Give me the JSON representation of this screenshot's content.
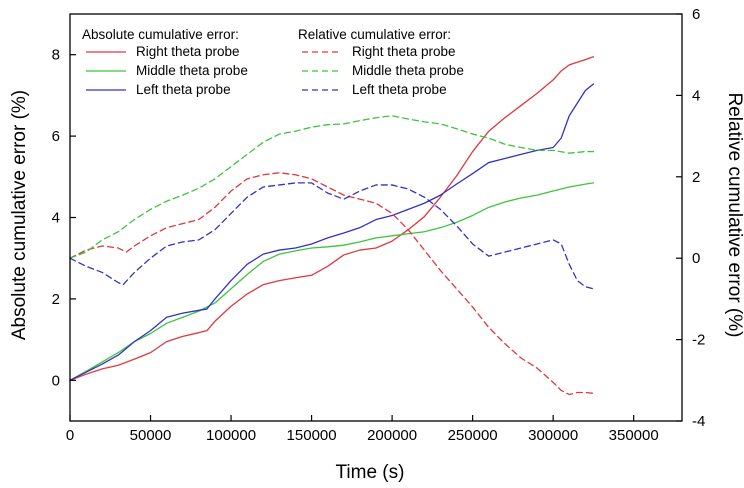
{
  "chart_data": {
    "type": "line",
    "xlabel": "Time (s)",
    "ylabel_left": "Absolute cumulative error (%)",
    "ylabel_right": "Relative cumulative error (%)",
    "xlim": [
      0,
      380000
    ],
    "ylim_left": [
      -1,
      9
    ],
    "ylim_right": [
      -4,
      6
    ],
    "x_ticks": [
      0,
      50000,
      100000,
      150000,
      200000,
      250000,
      300000,
      350000
    ],
    "y_ticks_left": [
      0,
      2,
      4,
      6,
      8
    ],
    "y_ticks_right": [
      -4,
      -2,
      0,
      2,
      4,
      6
    ],
    "legend": {
      "absolute_title": "Absolute cumulative error:",
      "relative_title": "Relative cumulative error:"
    },
    "series": [
      {
        "name": "Right theta probe",
        "group": "absolute",
        "axis": "left",
        "color": "#e0383c",
        "dash": "solid",
        "x": [
          0,
          10000,
          20000,
          30000,
          40000,
          50000,
          60000,
          70000,
          80000,
          85000,
          90000,
          100000,
          110000,
          120000,
          130000,
          140000,
          150000,
          160000,
          170000,
          180000,
          190000,
          200000,
          210000,
          220000,
          230000,
          240000,
          250000,
          260000,
          270000,
          280000,
          290000,
          300000,
          305000,
          310000,
          320000,
          325000
        ],
        "y": [
          0,
          0.15,
          0.28,
          0.37,
          0.52,
          0.68,
          0.95,
          1.08,
          1.17,
          1.22,
          1.45,
          1.82,
          2.12,
          2.35,
          2.45,
          2.52,
          2.58,
          2.8,
          3.08,
          3.2,
          3.25,
          3.42,
          3.7,
          4.02,
          4.5,
          5.02,
          5.62,
          6.12,
          6.45,
          6.75,
          7.05,
          7.38,
          7.6,
          7.75,
          7.88,
          7.95
        ]
      },
      {
        "name": "Middle theta probe",
        "group": "absolute",
        "axis": "left",
        "color": "#3ec43e",
        "dash": "solid",
        "x": [
          0,
          10000,
          20000,
          30000,
          40000,
          50000,
          60000,
          70000,
          80000,
          90000,
          100000,
          110000,
          120000,
          130000,
          140000,
          150000,
          160000,
          170000,
          180000,
          190000,
          200000,
          210000,
          220000,
          230000,
          240000,
          250000,
          260000,
          270000,
          280000,
          290000,
          300000,
          310000,
          320000,
          325000
        ],
        "y": [
          0,
          0.22,
          0.45,
          0.68,
          0.95,
          1.15,
          1.4,
          1.55,
          1.7,
          1.9,
          2.25,
          2.6,
          2.92,
          3.1,
          3.18,
          3.25,
          3.28,
          3.32,
          3.4,
          3.5,
          3.55,
          3.6,
          3.65,
          3.75,
          3.88,
          4.05,
          4.25,
          4.38,
          4.48,
          4.55,
          4.65,
          4.75,
          4.82,
          4.85
        ]
      },
      {
        "name": "Left theta probe",
        "group": "absolute",
        "axis": "left",
        "color": "#3232c8",
        "dash": "solid",
        "x": [
          0,
          10000,
          20000,
          30000,
          40000,
          50000,
          60000,
          70000,
          80000,
          85000,
          90000,
          100000,
          110000,
          120000,
          130000,
          140000,
          150000,
          160000,
          170000,
          180000,
          190000,
          200000,
          210000,
          220000,
          230000,
          240000,
          250000,
          260000,
          270000,
          280000,
          290000,
          300000,
          305000,
          310000,
          320000,
          325000
        ],
        "y": [
          0,
          0.2,
          0.4,
          0.62,
          0.95,
          1.22,
          1.55,
          1.65,
          1.72,
          1.75,
          2.0,
          2.45,
          2.85,
          3.1,
          3.2,
          3.25,
          3.35,
          3.5,
          3.62,
          3.75,
          3.95,
          4.05,
          4.2,
          4.35,
          4.55,
          4.82,
          5.08,
          5.35,
          5.45,
          5.55,
          5.65,
          5.72,
          5.95,
          6.5,
          7.12,
          7.28
        ]
      },
      {
        "name": "Right theta probe",
        "group": "relative",
        "axis": "right",
        "color": "#e0383c",
        "dash": "dashed",
        "x": [
          0,
          10000,
          20000,
          30000,
          35000,
          40000,
          50000,
          60000,
          70000,
          80000,
          90000,
          100000,
          110000,
          120000,
          130000,
          140000,
          150000,
          160000,
          170000,
          180000,
          190000,
          200000,
          210000,
          220000,
          230000,
          240000,
          250000,
          260000,
          270000,
          280000,
          290000,
          300000,
          305000,
          310000,
          315000,
          320000,
          325000
        ],
        "y": [
          0,
          0.2,
          0.3,
          0.25,
          0.15,
          0.3,
          0.55,
          0.75,
          0.85,
          0.95,
          1.25,
          1.65,
          1.95,
          2.05,
          2.1,
          2.05,
          1.95,
          1.75,
          1.55,
          1.45,
          1.35,
          1.1,
          0.7,
          0.2,
          -0.3,
          -0.75,
          -1.2,
          -1.7,
          -2.1,
          -2.45,
          -2.7,
          -3.05,
          -3.25,
          -3.35,
          -3.3,
          -3.3,
          -3.32
        ]
      },
      {
        "name": "Middle theta probe",
        "group": "relative",
        "axis": "right",
        "color": "#3ec43e",
        "dash": "dashed",
        "x": [
          0,
          10000,
          20000,
          30000,
          40000,
          50000,
          60000,
          70000,
          80000,
          90000,
          100000,
          110000,
          120000,
          130000,
          140000,
          150000,
          160000,
          170000,
          180000,
          190000,
          200000,
          210000,
          220000,
          230000,
          240000,
          250000,
          260000,
          270000,
          280000,
          290000,
          300000,
          310000,
          320000,
          325000
        ],
        "y": [
          0,
          0.15,
          0.45,
          0.65,
          0.95,
          1.2,
          1.4,
          1.55,
          1.72,
          1.95,
          2.25,
          2.55,
          2.85,
          3.05,
          3.12,
          3.22,
          3.28,
          3.3,
          3.38,
          3.45,
          3.5,
          3.42,
          3.35,
          3.3,
          3.18,
          3.05,
          2.95,
          2.8,
          2.72,
          2.65,
          2.65,
          2.58,
          2.62,
          2.62
        ]
      },
      {
        "name": "Left theta probe",
        "group": "relative",
        "axis": "right",
        "color": "#3232c8",
        "dash": "dashed",
        "x": [
          0,
          10000,
          20000,
          30000,
          33000,
          40000,
          50000,
          60000,
          70000,
          80000,
          90000,
          100000,
          110000,
          120000,
          130000,
          140000,
          150000,
          160000,
          170000,
          180000,
          190000,
          200000,
          210000,
          220000,
          230000,
          240000,
          250000,
          260000,
          270000,
          280000,
          290000,
          300000,
          305000,
          310000,
          315000,
          320000,
          325000
        ],
        "y": [
          0,
          -0.2,
          -0.35,
          -0.6,
          -0.65,
          -0.35,
          0,
          0.3,
          0.4,
          0.45,
          0.7,
          1.1,
          1.5,
          1.75,
          1.8,
          1.85,
          1.85,
          1.6,
          1.45,
          1.65,
          1.8,
          1.8,
          1.7,
          1.5,
          1.2,
          0.8,
          0.35,
          0.05,
          0.15,
          0.25,
          0.35,
          0.45,
          0.35,
          -0.15,
          -0.55,
          -0.7,
          -0.75
        ]
      }
    ]
  }
}
